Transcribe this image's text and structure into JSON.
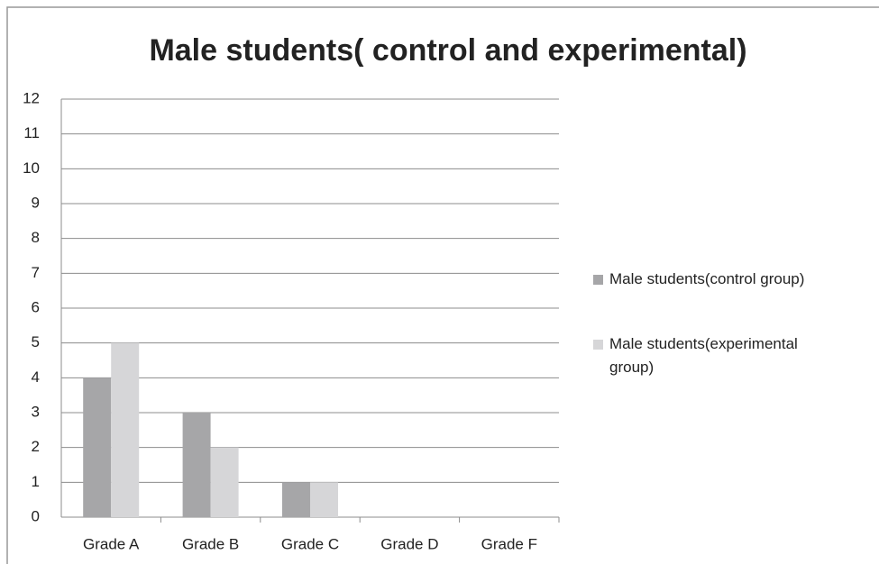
{
  "chart_data": {
    "type": "bar",
    "title": "Male students( control and experimental)",
    "categories": [
      "Grade A",
      "Grade B",
      "Grade C",
      "Grade D",
      "Grade F"
    ],
    "series": [
      {
        "name": "Male students(control group)",
        "color": "#a6a6a8",
        "values": [
          4,
          3,
          1,
          0,
          0
        ]
      },
      {
        "name": "Male students(experimental group)",
        "color": "#d6d6d8",
        "values": [
          5,
          2,
          1,
          0,
          0
        ]
      }
    ],
    "ylim": [
      0,
      12
    ],
    "yticks": [
      0,
      1,
      2,
      3,
      4,
      5,
      6,
      7,
      8,
      9,
      10,
      11,
      12
    ],
    "grid": true,
    "legend": "right"
  }
}
